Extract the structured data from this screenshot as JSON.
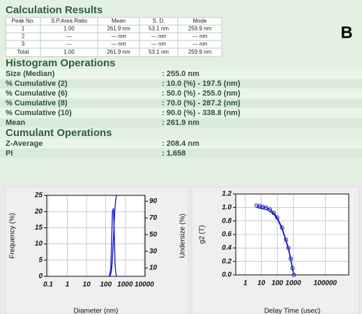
{
  "header": {
    "title": "Calculation Results",
    "panel_letter": "B"
  },
  "table": {
    "columns": [
      "Peak No.",
      "S.P.Area Ratio",
      "Mean",
      "S. D.",
      "Mode"
    ],
    "rows": [
      [
        "1",
        "1.00",
        "261.9 nm",
        "53.1 nm",
        "259.9 nm"
      ],
      [
        "2",
        "---",
        "--- nm",
        "--- nm",
        "--- nm"
      ],
      [
        "3",
        "---",
        "--- nm",
        "--- nm",
        "--- nm"
      ],
      [
        "Total",
        "1.00",
        "261.9 nm",
        "53.1 nm",
        "259.9 nm"
      ]
    ]
  },
  "histogram": {
    "title": "Histogram Operations",
    "items": [
      {
        "label": "Size (Median)",
        "value": ":  255.0 nm"
      },
      {
        "label": "% Cumulative (2)",
        "value": ":  10.0 (%) - 197.5 (nm)"
      },
      {
        "label": "% Cumulative (6)",
        "value": ":  50.0 (%) - 255.0 (nm)"
      },
      {
        "label": "% Cumulative (8)",
        "value": ":  70.0 (%) - 287.2 (nm)"
      },
      {
        "label": "% Cumulative (10)",
        "value": ":  90.0 (%) - 338.8 (nm)"
      },
      {
        "label": "Mean",
        "value": ":  261.9 nm"
      }
    ]
  },
  "cumulant": {
    "title": "Cumulant Operations",
    "items": [
      {
        "label": "Z-Average",
        "value": ":  208.4 nm"
      },
      {
        "label": "PI",
        "value": ":  1.658"
      }
    ]
  },
  "charts": [
    {
      "type": "line",
      "xlabel": "Diameter (nm)",
      "ylabel": "Frequency (%)",
      "y2label": "Undersize (%)",
      "log_x": true,
      "grid": true,
      "xlim": [
        0.085,
        11000
      ],
      "ylim": [
        0,
        25
      ],
      "y2lim": [
        0,
        97
      ],
      "xticks": [
        0.1,
        1,
        10,
        100,
        1000,
        10000
      ],
      "yticks": [
        0,
        5,
        10,
        15,
        20,
        25
      ],
      "y2ticks": [
        10,
        30,
        50,
        70,
        90
      ],
      "series": [
        {
          "color": "#1a1acc",
          "x": [
            150,
            180,
            200,
            220,
            250,
            280,
            300,
            330,
            360
          ],
          "values": [
            0,
            2,
            10,
            20,
            21,
            12,
            4,
            1,
            0
          ]
        },
        {
          "color": "#1a1acc",
          "axis": "y2",
          "x": [
            150,
            180,
            200,
            220,
            250,
            280,
            300,
            330,
            360,
            400
          ],
          "values": [
            0,
            2,
            8,
            20,
            45,
            70,
            82,
            92,
            97,
            100
          ]
        }
      ]
    },
    {
      "type": "line",
      "xlabel": "Delay Time (usec)",
      "ylabel": "g2 (T)",
      "log_x": true,
      "grid": true,
      "xlim": [
        0.25,
        3000000
      ],
      "ylim": [
        0,
        1.2
      ],
      "xticks": [
        1,
        10,
        100,
        1000,
        100000
      ],
      "yticks": [
        {
          "value": 0,
          "label": "0.0"
        },
        {
          "value": 0.2,
          "label": "0.2"
        },
        {
          "value": 0.4,
          "label": "0.4"
        },
        {
          "value": 0.6,
          "label": "0.6"
        },
        {
          "value": 0.8,
          "label": "0.8"
        },
        {
          "value": 1,
          "label": "1.0"
        },
        {
          "value": 1.2,
          "label": "1.2"
        }
      ],
      "series": [
        {
          "color": "#1a1acc",
          "markers": true,
          "x": [
            5,
            8,
            12,
            20,
            35,
            60,
            100,
            200,
            350,
            500,
            700,
            900,
            1100
          ],
          "values": [
            1.03,
            1.02,
            1.01,
            1.0,
            0.97,
            0.92,
            0.85,
            0.7,
            0.52,
            0.4,
            0.24,
            0.1,
            0
          ]
        },
        {
          "color": "#2222aa",
          "x": [
            5,
            8,
            12,
            20,
            35,
            60,
            100,
            200,
            350,
            500,
            700,
            900,
            1100
          ],
          "values": [
            1.0,
            0.99,
            0.98,
            0.97,
            0.94,
            0.9,
            0.83,
            0.68,
            0.5,
            0.38,
            0.22,
            0.08,
            0
          ]
        }
      ]
    }
  ]
}
